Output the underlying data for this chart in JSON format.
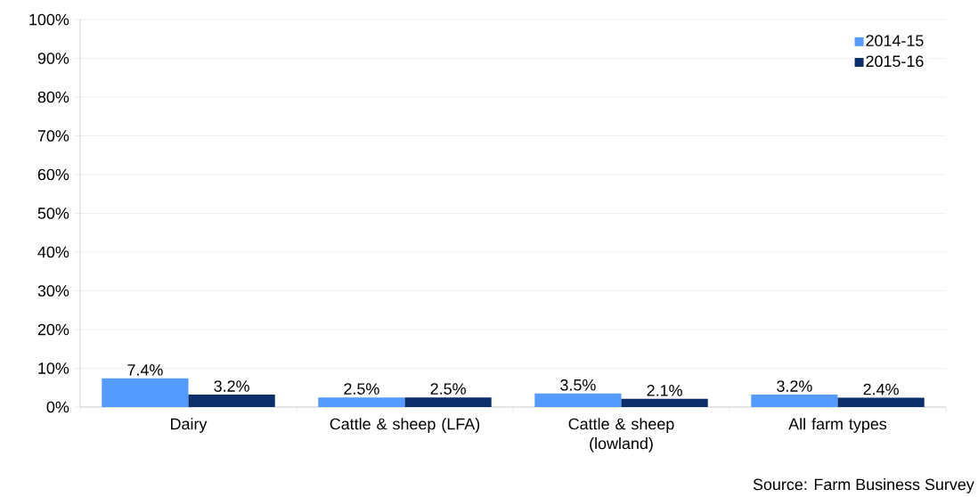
{
  "chart_data": {
    "type": "bar",
    "categories": [
      "Dairy",
      "Cattle & sheep (LFA)",
      "Cattle & sheep (lowland)",
      "All farm types"
    ],
    "series": [
      {
        "name": "2014-15",
        "color": "#559bff",
        "values": [
          7.4,
          2.5,
          3.5,
          3.2
        ],
        "value_labels": [
          "7.4%",
          "2.5%",
          "3.5%",
          "3.2%"
        ]
      },
      {
        "name": "2015-16",
        "color": "#0c2f6b",
        "values": [
          3.2,
          2.5,
          2.1,
          2.4
        ],
        "value_labels": [
          "3.2%",
          "2.5%",
          "2.1%",
          "2.4%"
        ]
      }
    ],
    "ylim": [
      0,
      100
    ],
    "yticks": [
      {
        "value": 0,
        "label": "0%"
      },
      {
        "value": 10,
        "label": "10%"
      },
      {
        "value": 20,
        "label": "20%"
      },
      {
        "value": 30,
        "label": "30%"
      },
      {
        "value": 40,
        "label": "40%"
      },
      {
        "value": 50,
        "label": "50%"
      },
      {
        "value": 60,
        "label": "60%"
      },
      {
        "value": 70,
        "label": "70%"
      },
      {
        "value": 80,
        "label": "80%"
      },
      {
        "value": 90,
        "label": "90%"
      },
      {
        "value": 100,
        "label": "100%"
      }
    ],
    "grid": "y",
    "legend": "top right",
    "annotations": [
      "Source: Farm Business Survey"
    ]
  }
}
